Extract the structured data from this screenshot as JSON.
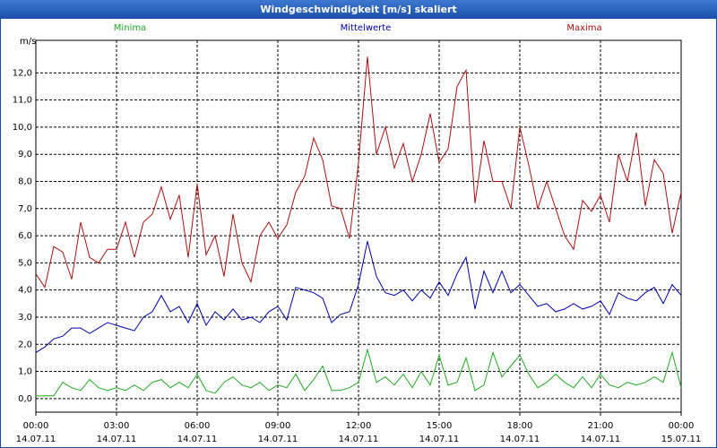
{
  "chart_data": {
    "type": "line",
    "title": "Windgeschwindigkeit [m/s] skaliert",
    "y_label": "m/s",
    "x": [
      0,
      20,
      40,
      60,
      80,
      100,
      120,
      140,
      160,
      180,
      200,
      220,
      240,
      260,
      280,
      300,
      320,
      340,
      360,
      380,
      400,
      420,
      440,
      460,
      480,
      500,
      520,
      540,
      560,
      580,
      600,
      620,
      640,
      660,
      680,
      700,
      720,
      740,
      760,
      780,
      800,
      820,
      840,
      860,
      880,
      900,
      920,
      940,
      960,
      980,
      1000,
      1020,
      1040,
      1060,
      1080,
      1100,
      1120,
      1140,
      1160,
      1180,
      1200,
      1220,
      1240,
      1260,
      1280,
      1300,
      1320,
      1340,
      1360,
      1380,
      1400,
      1420,
      1440
    ],
    "series": [
      {
        "name": "Minima",
        "color": "#22aa22",
        "values": [
          0.1,
          0.1,
          0.1,
          0.6,
          0.4,
          0.3,
          0.7,
          0.4,
          0.3,
          0.4,
          0.3,
          0.5,
          0.3,
          0.6,
          0.7,
          0.4,
          0.6,
          0.4,
          0.9,
          0.3,
          0.2,
          0.6,
          0.8,
          0.5,
          0.4,
          0.6,
          0.3,
          0.5,
          0.4,
          0.9,
          0.3,
          0.7,
          1.2,
          0.3,
          0.3,
          0.4,
          0.6,
          1.8,
          0.6,
          0.8,
          0.5,
          0.9,
          0.4,
          1.0,
          0.5,
          1.6,
          0.5,
          0.6,
          1.5,
          0.3,
          0.5,
          1.7,
          0.8,
          1.2,
          1.6,
          0.9,
          0.4,
          0.6,
          0.9,
          0.6,
          0.4,
          0.8,
          0.4,
          0.9,
          0.5,
          0.4,
          0.6,
          0.5,
          0.6,
          0.8,
          0.6,
          1.7,
          0.4
        ]
      },
      {
        "name": "Mittelwerte",
        "color": "#0000aa",
        "values": [
          1.7,
          1.9,
          2.2,
          2.3,
          2.6,
          2.6,
          2.4,
          2.6,
          2.8,
          2.7,
          2.6,
          2.5,
          3.0,
          3.2,
          3.8,
          3.2,
          3.4,
          2.8,
          3.5,
          2.7,
          3.2,
          2.9,
          3.3,
          2.9,
          3.0,
          2.8,
          3.2,
          3.4,
          2.9,
          4.1,
          4.0,
          3.9,
          3.7,
          2.8,
          3.1,
          3.2,
          4.2,
          5.8,
          4.5,
          3.9,
          3.8,
          4.0,
          3.6,
          4.0,
          3.7,
          4.3,
          3.8,
          4.6,
          5.2,
          3.3,
          4.7,
          3.9,
          4.7,
          3.9,
          4.2,
          3.8,
          3.4,
          3.5,
          3.2,
          3.3,
          3.5,
          3.3,
          3.4,
          3.6,
          3.1,
          3.9,
          3.7,
          3.6,
          3.9,
          4.1,
          3.5,
          4.2,
          3.8
        ]
      },
      {
        "name": "Maxima",
        "color": "#aa1111",
        "values": [
          4.6,
          4.1,
          5.6,
          5.4,
          4.4,
          6.5,
          5.2,
          5.0,
          5.5,
          5.5,
          6.5,
          5.2,
          6.5,
          6.8,
          7.8,
          6.6,
          7.5,
          5.2,
          7.9,
          5.3,
          6.0,
          4.5,
          6.8,
          5.0,
          4.3,
          6.0,
          6.5,
          5.9,
          6.4,
          7.6,
          8.2,
          9.6,
          8.8,
          7.1,
          7.0,
          5.9,
          8.7,
          12.6,
          9.0,
          10.0,
          8.5,
          9.4,
          8.0,
          9.0,
          10.5,
          8.7,
          9.2,
          11.5,
          12.1,
          7.2,
          9.5,
          8.0,
          8.0,
          7.0,
          10.0,
          8.6,
          7.0,
          8.0,
          7.0,
          6.0,
          5.5,
          7.3,
          6.9,
          7.5,
          6.5,
          9.0,
          8.0,
          9.8,
          7.1,
          8.8,
          8.3,
          6.1,
          7.6
        ]
      }
    ],
    "xlim": [
      0,
      1440
    ],
    "xticks": [
      {
        "value": 0,
        "label": "00:00"
      },
      {
        "value": 180,
        "label": "03:00"
      },
      {
        "value": 360,
        "label": "06:00"
      },
      {
        "value": 540,
        "label": "09:00"
      },
      {
        "value": 720,
        "label": "12:00"
      },
      {
        "value": 900,
        "label": "15:00"
      },
      {
        "value": 1080,
        "label": "18:00"
      },
      {
        "value": 1260,
        "label": "21:00"
      },
      {
        "value": 1440,
        "label": "00:00"
      }
    ],
    "xtick_dates": [
      "14.07.11",
      "14.07.11",
      "14.07.11",
      "14.07.11",
      "14.07.11",
      "14.07.11",
      "14.07.11",
      "14.07.11",
      "15.07.11"
    ],
    "ylim": [
      -0.5,
      13.2
    ],
    "yticks": [
      {
        "value": 0,
        "label": "0,0"
      },
      {
        "value": 1,
        "label": "1,0"
      },
      {
        "value": 2,
        "label": "2,0"
      },
      {
        "value": 3,
        "label": "3,0"
      },
      {
        "value": 4,
        "label": "4,0"
      },
      {
        "value": 5,
        "label": "5,0"
      },
      {
        "value": 6,
        "label": "6,0"
      },
      {
        "value": 7,
        "label": "7,0"
      },
      {
        "value": 8,
        "label": "8,0"
      },
      {
        "value": 9,
        "label": "9,0"
      },
      {
        "value": 10,
        "label": "10,0"
      },
      {
        "value": 11,
        "label": "11,0"
      },
      {
        "value": 12,
        "label": "12,0"
      }
    ],
    "grid": true
  }
}
